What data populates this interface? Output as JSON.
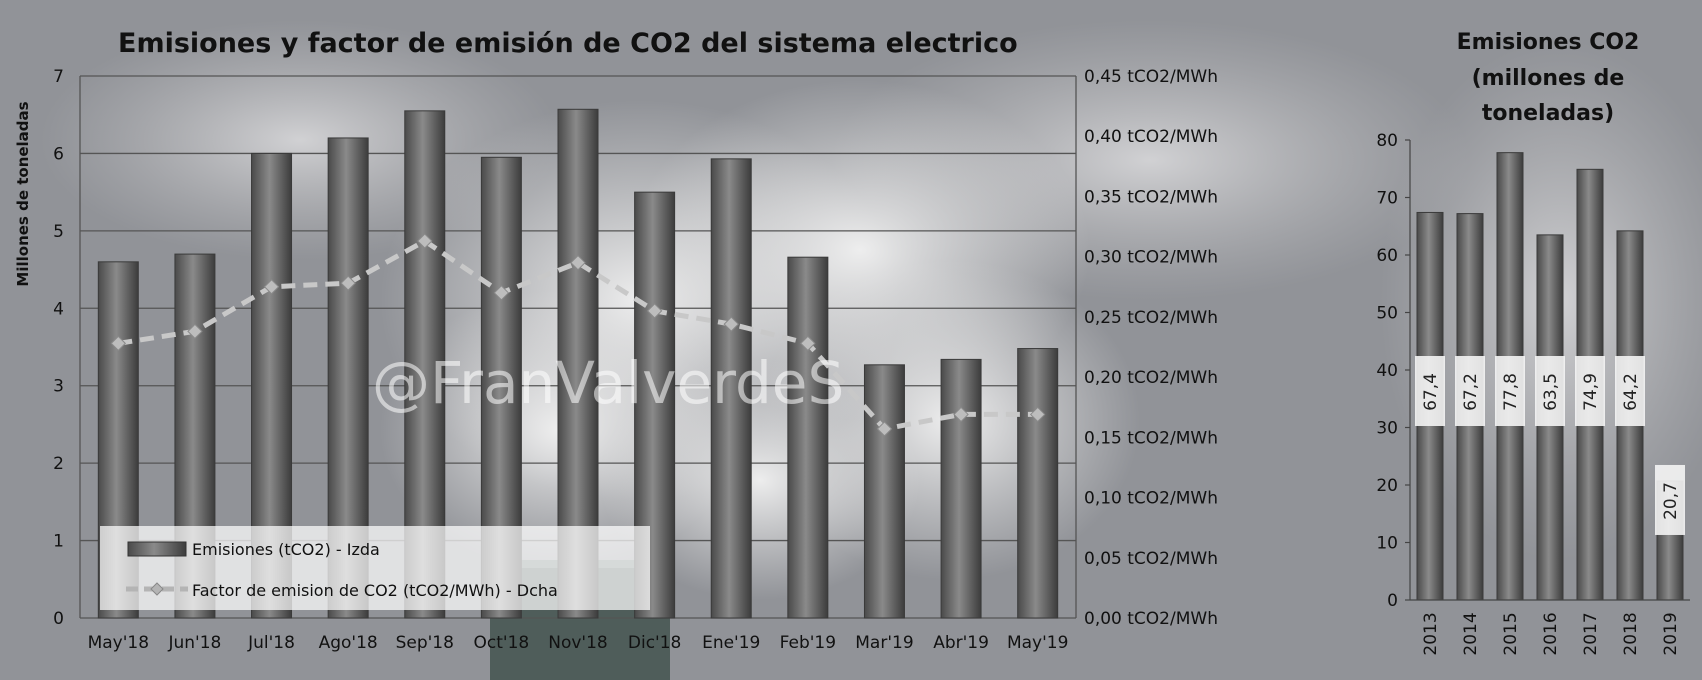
{
  "watermark": "@FranValverdeS",
  "colors": {
    "bar": "#6e6e6e",
    "bar_edge": "#3a3a3a",
    "line": "#c8c8c8",
    "grid": "#555555",
    "sky": "#8a8c90"
  },
  "chart_data": [
    {
      "type": "bar",
      "title": "Emisiones y factor de emisión de CO2 del sistema electrico",
      "categories": [
        "May'18",
        "Jun'18",
        "Jul'18",
        "Ago'18",
        "Sep'18",
        "Oct'18",
        "Nov'18",
        "Dic'18",
        "Ene'19",
        "Feb'19",
        "Mar'19",
        "Abr'19",
        "May'19"
      ],
      "ylabel": "Millones de toneladas",
      "ylim": [
        0,
        7
      ],
      "yticks": [
        "0",
        "1",
        "2",
        "3",
        "4",
        "5",
        "6",
        "7"
      ],
      "y2lim": [
        0,
        0.45
      ],
      "y2ticks": [
        "0,00 tCO2/MWh",
        "0,05 tCO2/MWh",
        "0,10 tCO2/MWh",
        "0,15 tCO2/MWh",
        "0,20 tCO2/MWh",
        "0,25 tCO2/MWh",
        "0,30 tCO2/MWh",
        "0,35 tCO2/MWh",
        "0,40 tCO2/MWh",
        "0,45 tCO2/MWh"
      ],
      "grid": true,
      "legend_position": "bottom-left",
      "series": [
        {
          "name": "Emisiones (tCO2) - Izda",
          "type": "bar",
          "axis": "left",
          "values": [
            4.6,
            4.7,
            6.0,
            6.2,
            6.55,
            5.95,
            6.57,
            5.5,
            5.93,
            4.66,
            3.27,
            3.34,
            3.48
          ]
        },
        {
          "name": "Factor de emision de CO2 (tCO2/MWh) - Dcha",
          "type": "line",
          "axis": "right",
          "values": [
            0.228,
            0.238,
            0.275,
            0.278,
            0.313,
            0.27,
            0.295,
            0.255,
            0.244,
            0.228,
            0.157,
            0.169,
            0.169
          ]
        }
      ]
    },
    {
      "type": "bar",
      "title": [
        "Emisiones CO2",
        "(millones de",
        "toneladas)"
      ],
      "categories": [
        "2013",
        "2014",
        "2015",
        "2016",
        "2017",
        "2018",
        "2019"
      ],
      "ylim": [
        0,
        80
      ],
      "yticks": [
        "0",
        "10",
        "20",
        "30",
        "40",
        "50",
        "60",
        "70",
        "80"
      ],
      "values": [
        67.4,
        67.2,
        77.8,
        63.5,
        74.9,
        64.2,
        20.7
      ],
      "data_labels": [
        "67,4",
        "67,2",
        "77,8",
        "63,5",
        "74,9",
        "64,2",
        "20,7"
      ],
      "grid": false
    }
  ]
}
